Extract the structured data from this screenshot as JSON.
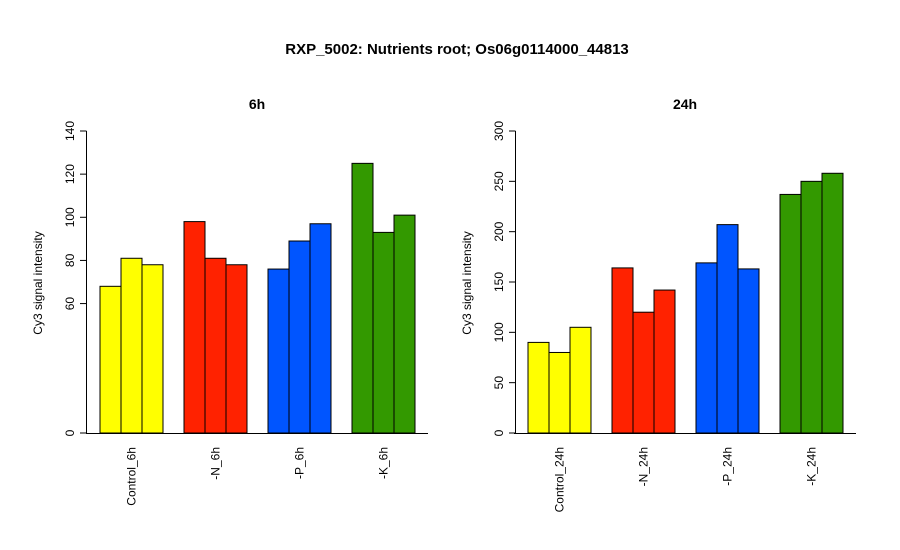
{
  "figure_title": "RXP_5002: Nutrients root; Os06g0114000_44813",
  "chart_data": [
    {
      "type": "bar",
      "title": "6h",
      "ylabel": "Cy3 signal intensity",
      "xlabel": "",
      "ylim": [
        0,
        140
      ],
      "yticks": [
        0,
        60,
        80,
        100,
        120,
        140
      ],
      "grid": false,
      "categories": [
        "Control_6h",
        "-N_6h",
        "-P_6h",
        "-K_6h"
      ],
      "colors": [
        "#ffff00",
        "#ff2200",
        "#0055ff",
        "#339900"
      ],
      "values": [
        [
          68,
          81,
          78
        ],
        [
          98,
          81,
          78
        ],
        [
          76,
          89,
          97
        ],
        [
          125,
          93,
          101
        ]
      ]
    },
    {
      "type": "bar",
      "title": "24h",
      "ylabel": "Cy3 signal intensity",
      "xlabel": "",
      "ylim": [
        0,
        300
      ],
      "yticks": [
        0,
        50,
        100,
        150,
        200,
        250,
        300
      ],
      "grid": false,
      "categories": [
        "Control_24h",
        "-N_24h",
        "-P_24h",
        "-K_24h"
      ],
      "colors": [
        "#ffff00",
        "#ff2200",
        "#0055ff",
        "#339900"
      ],
      "values": [
        [
          90,
          80,
          105
        ],
        [
          164,
          120,
          142
        ],
        [
          169,
          207,
          163
        ],
        [
          237,
          250,
          258
        ]
      ]
    }
  ]
}
